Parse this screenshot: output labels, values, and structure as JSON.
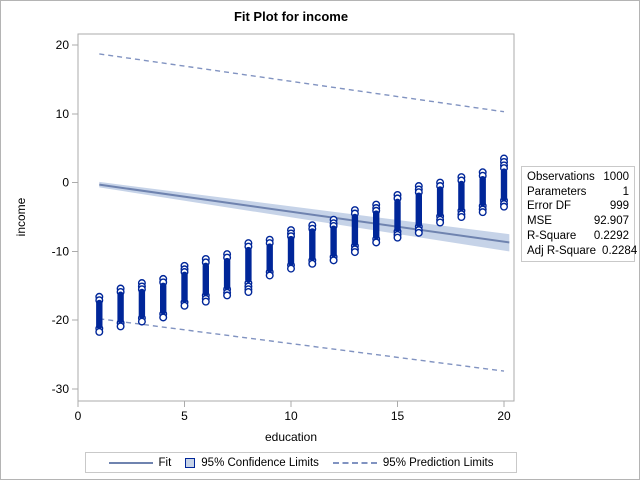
{
  "colors": {
    "scatter": "#002699",
    "fit_line": "#6F83AF",
    "confidence_band": "#C6D3E8",
    "prediction_line": "#8193C1",
    "frame": "#ababab",
    "panel_border": "#c9c9c9",
    "text": "#000000"
  },
  "chart_data": {
    "type": "scatter",
    "title": "Fit Plot for income",
    "xlabel": "education",
    "ylabel": "income",
    "xlim": [
      0,
      20.5
    ],
    "ylim": [
      -31.6,
      21.6
    ],
    "x_ticks": [
      0,
      5,
      10,
      15,
      20
    ],
    "y_ticks": [
      20,
      10,
      0,
      -10,
      -20,
      -30
    ],
    "grid": false,
    "legend_position": "bottom",
    "fit_line": {
      "x": [
        1,
        20.25
      ],
      "y": [
        -0.3,
        -8.7
      ]
    },
    "confidence_band": {
      "x": [
        1,
        20.25
      ],
      "upper": [
        0.1,
        -7.5
      ],
      "lower": [
        -0.7,
        -10.0
      ]
    },
    "prediction_limits": {
      "x": [
        1,
        20
      ],
      "upper": [
        18.7,
        10.3
      ],
      "lower": [
        -19.8,
        -27.4
      ]
    },
    "scatter_columns": [
      {
        "e": 1,
        "bar": [
          -20.8,
          -17.5
        ],
        "points": [
          -16.6,
          -17.1,
          -21.2,
          -21.7
        ]
      },
      {
        "e": 2,
        "bar": [
          -20.0,
          -16.3
        ],
        "points": [
          -15.4,
          -15.9,
          -20.4,
          -20.9
        ]
      },
      {
        "e": 3,
        "bar": [
          -19.3,
          -15.9
        ],
        "points": [
          -14.6,
          -15.1,
          -15.5,
          -19.7,
          -20.2
        ]
      },
      {
        "e": 4,
        "bar": [
          -18.7,
          -15.0
        ],
        "points": [
          -14.0,
          -14.5,
          -19.1,
          -19.6
        ]
      },
      {
        "e": 5,
        "bar": [
          -17.0,
          -13.4
        ],
        "points": [
          -12.1,
          -12.6,
          -13.0,
          -17.4,
          -17.9
        ]
      },
      {
        "e": 6,
        "bar": [
          -16.0,
          -12.1
        ],
        "points": [
          -11.1,
          -11.6,
          -16.4,
          -16.9,
          -17.3
        ]
      },
      {
        "e": 7,
        "bar": [
          -15.1,
          -11.4
        ],
        "points": [
          -10.4,
          -10.9,
          -15.5,
          -16.0,
          -16.4
        ]
      },
      {
        "e": 8,
        "bar": [
          -14.1,
          -9.8
        ],
        "points": [
          -8.8,
          -9.3,
          -14.6,
          -15.1,
          -15.5,
          -15.9
        ]
      },
      {
        "e": 9,
        "bar": [
          -12.6,
          -9.3
        ],
        "points": [
          -8.3,
          -8.8,
          -13.0,
          -13.5
        ]
      },
      {
        "e": 10,
        "bar": [
          -11.6,
          -8.2
        ],
        "points": [
          -6.9,
          -7.4,
          -7.8,
          -12.0,
          -12.5
        ]
      },
      {
        "e": 11,
        "bar": [
          -10.9,
          -7.1
        ],
        "points": [
          -6.2,
          -6.7,
          -11.3,
          -11.8
        ]
      },
      {
        "e": 12,
        "bar": [
          -10.4,
          -6.7
        ],
        "points": [
          -5.4,
          -5.9,
          -6.3,
          -10.8,
          -11.3
        ]
      },
      {
        "e": 13,
        "bar": [
          -8.8,
          -5.0
        ],
        "points": [
          -4.0,
          -4.5,
          -9.2,
          -9.7,
          -10.1
        ]
      },
      {
        "e": 14,
        "bar": [
          -7.8,
          -4.5
        ],
        "points": [
          -3.2,
          -3.7,
          -4.1,
          -8.2,
          -8.7
        ]
      },
      {
        "e": 15,
        "bar": [
          -6.7,
          -2.8
        ],
        "points": [
          -1.8,
          -2.3,
          -7.1,
          -7.6,
          -8.0
        ]
      },
      {
        "e": 16,
        "bar": [
          -6.0,
          -1.9
        ],
        "points": [
          -0.5,
          -1.0,
          -1.4,
          -6.4,
          -6.9,
          -7.3
        ]
      },
      {
        "e": 17,
        "bar": [
          -4.5,
          -1.0
        ],
        "points": [
          0.0,
          -0.5,
          -4.9,
          -5.4,
          -5.8
        ]
      },
      {
        "e": 18,
        "bar": [
          -3.7,
          -0.2
        ],
        "points": [
          0.8,
          0.3,
          -4.1,
          -4.6,
          -5.0
        ]
      },
      {
        "e": 19,
        "bar": [
          -3.0,
          0.5
        ],
        "points": [
          1.5,
          1.0,
          -3.4,
          -3.9,
          -4.3
        ]
      },
      {
        "e": 20,
        "bar": [
          -2.2,
          1.6
        ],
        "points": [
          3.5,
          3.0,
          2.5,
          2.1,
          -2.6,
          -3.1,
          -3.5
        ]
      }
    ]
  },
  "stats": {
    "rows": [
      {
        "label": "Observations",
        "value": "1000"
      },
      {
        "label": "Parameters",
        "value": "1"
      },
      {
        "label": "Error DF",
        "value": "999"
      },
      {
        "label": "MSE",
        "value": "92.907"
      },
      {
        "label": "R-Square",
        "value": "0.2292"
      },
      {
        "label": "Adj R-Square",
        "value": "0.2284"
      }
    ]
  },
  "legend": {
    "items": [
      {
        "label": "Fit",
        "swatch": "line"
      },
      {
        "label": "95% Confidence Limits",
        "swatch": "box"
      },
      {
        "label": "95% Prediction Limits",
        "swatch": "dashed"
      }
    ]
  }
}
